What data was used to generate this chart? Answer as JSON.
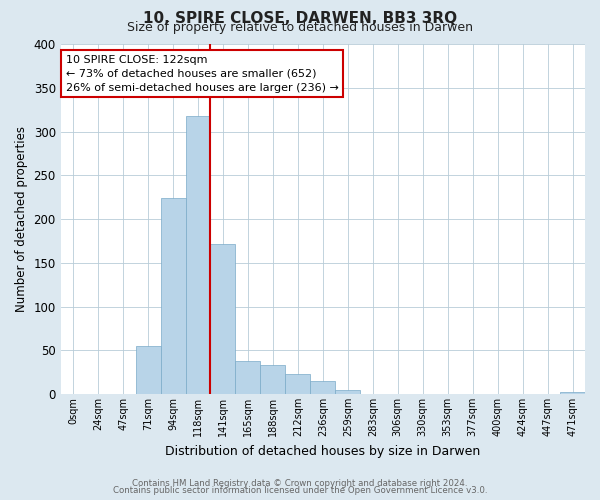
{
  "title": "10, SPIRE CLOSE, DARWEN, BB3 3RQ",
  "subtitle": "Size of property relative to detached houses in Darwen",
  "xlabel": "Distribution of detached houses by size in Darwen",
  "ylabel": "Number of detached properties",
  "bar_color": "#b8d4e8",
  "bar_edge_color": "#7aaac8",
  "background_color": "#dce8f0",
  "plot_bg_color": "#ffffff",
  "grid_color": "#b8ccd8",
  "tick_labels": [
    "0sqm",
    "24sqm",
    "47sqm",
    "71sqm",
    "94sqm",
    "118sqm",
    "141sqm",
    "165sqm",
    "188sqm",
    "212sqm",
    "236sqm",
    "259sqm",
    "283sqm",
    "306sqm",
    "330sqm",
    "353sqm",
    "377sqm",
    "400sqm",
    "424sqm",
    "447sqm",
    "471sqm"
  ],
  "bar_heights": [
    0,
    0,
    0,
    55,
    224,
    318,
    172,
    38,
    33,
    23,
    15,
    5,
    0,
    0,
    0,
    0,
    0,
    0,
    0,
    0,
    2
  ],
  "property_line_after_bar": 5,
  "property_line_color": "#cc0000",
  "annotation_title": "10 SPIRE CLOSE: 122sqm",
  "annotation_line1": "← 73% of detached houses are smaller (652)",
  "annotation_line2": "26% of semi-detached houses are larger (236) →",
  "annotation_box_color": "#ffffff",
  "annotation_box_edge_color": "#cc0000",
  "ylim": [
    0,
    400
  ],
  "yticks": [
    0,
    50,
    100,
    150,
    200,
    250,
    300,
    350,
    400
  ],
  "footer1": "Contains HM Land Registry data © Crown copyright and database right 2024.",
  "footer2": "Contains public sector information licensed under the Open Government Licence v3.0."
}
